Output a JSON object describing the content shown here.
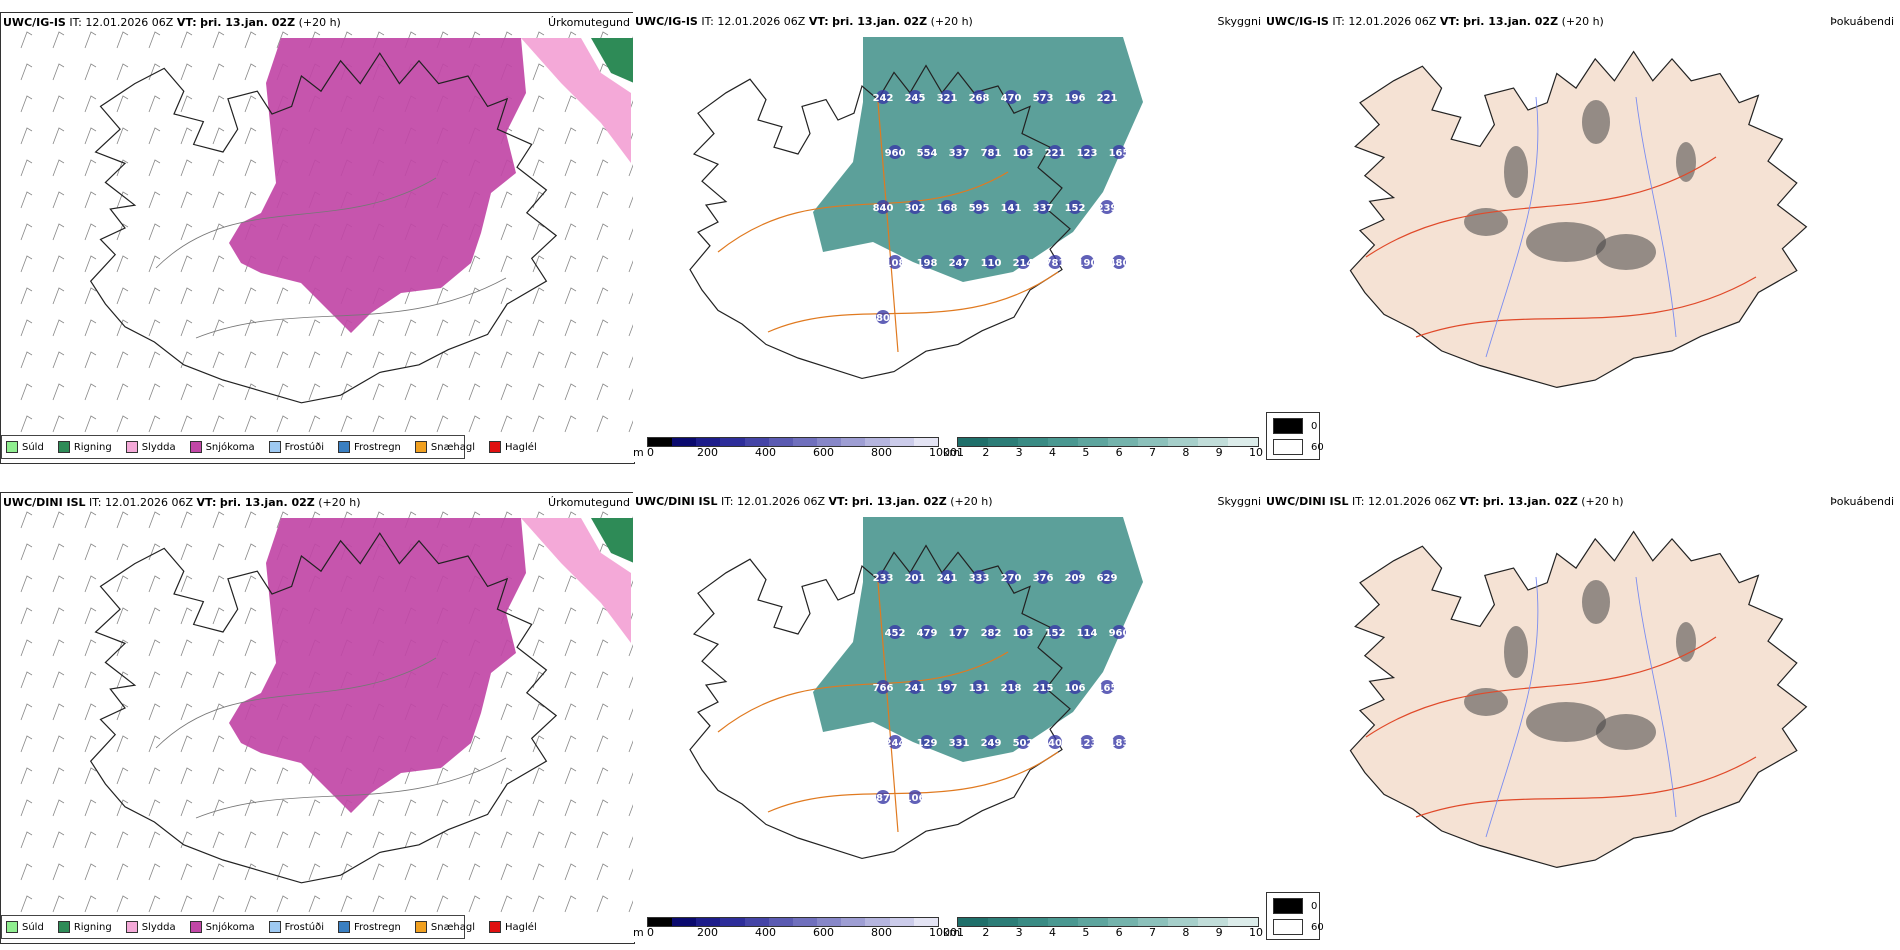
{
  "rows": [
    {
      "model": "UWC/IG-IS",
      "it_label": "IT:",
      "it_value": "12.01.2026 06Z",
      "vt_label": "VT:",
      "vt_value": "þri. 13.jan. 02Z",
      "lead": "(+20 h)",
      "peaks": [
        "242",
        "245",
        "321",
        "268",
        "470",
        "573",
        "196",
        "221",
        "960",
        "554",
        "337",
        "781",
        "103",
        "221",
        "123",
        "165",
        "840",
        "302",
        "168",
        "595",
        "141",
        "337",
        "152",
        "239",
        "108",
        "198",
        "247",
        "110",
        "214",
        "781",
        "190",
        "480",
        "80"
      ]
    },
    {
      "model": "UWC/DINI ISL",
      "it_label": "IT:",
      "it_value": "12.01.2026 06Z",
      "vt_label": "VT:",
      "vt_value": "þri. 13.jan. 02Z",
      "lead": "(+20 h)",
      "peaks": [
        "233",
        "201",
        "241",
        "333",
        "270",
        "376",
        "209",
        "629",
        "452",
        "479",
        "177",
        "282",
        "103",
        "152",
        "114",
        "960",
        "766",
        "241",
        "197",
        "131",
        "218",
        "215",
        "106",
        "165",
        "244",
        "129",
        "331",
        "249",
        "502",
        "40",
        "123",
        "183",
        "87",
        "106"
      ]
    }
  ],
  "panel_titles": {
    "precip": "Úrkomutegund",
    "cloud": "Skyggni",
    "fog": "Þokuábendi"
  },
  "precip_legend": [
    {
      "label": "Súld",
      "color": "#90ee90"
    },
    {
      "label": "Rigning",
      "color": "#2e8b57"
    },
    {
      "label": "Slydda",
      "color": "#f4a9d8"
    },
    {
      "label": "Snjókoma",
      "color": "#c147a6"
    },
    {
      "label": "Frostúði",
      "color": "#9ec9f2"
    },
    {
      "label": "Frostregn",
      "color": "#3a7fc1"
    },
    {
      "label": "Snæhagl",
      "color": "#f0a020"
    },
    {
      "label": "Haglél",
      "color": "#e01010"
    }
  ],
  "height_bar": {
    "unit": "m",
    "ticks": [
      "0",
      "200",
      "400",
      "600",
      "800",
      "1000"
    ],
    "colors": [
      "#000000",
      "#0a0a6e",
      "#1d1d8a",
      "#2e2e9a",
      "#4444a6",
      "#5b5bb2",
      "#7070bd",
      "#8787c8",
      "#9e9ed3",
      "#b5b5de",
      "#ccccea",
      "#e4e4f4"
    ]
  },
  "km_bar": {
    "unit": "km",
    "ticks": [
      "1",
      "2",
      "3",
      "4",
      "5",
      "6",
      "7",
      "8",
      "9",
      "10"
    ],
    "colors": [
      "#1f6f6a",
      "#2c7d77",
      "#3a8b84",
      "#4a9891",
      "#5ea59e",
      "#74b3ac",
      "#8cc1bb",
      "#a6cfca",
      "#c1ddd9",
      "#dcecea"
    ]
  },
  "fog_legend": [
    {
      "label": "0",
      "color": "#000000"
    },
    {
      "label": "60",
      "color": "#ffffff"
    }
  ]
}
